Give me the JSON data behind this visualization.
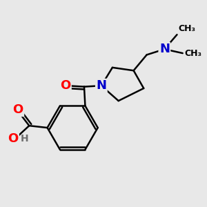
{
  "bg_color": "#e8e8e8",
  "bond_color": "#000000",
  "bond_width": 1.8,
  "atom_colors": {
    "O": "#ff0000",
    "N": "#0000cc",
    "H": "#707070"
  },
  "font_size_atom": 12,
  "font_size_methyl": 9
}
